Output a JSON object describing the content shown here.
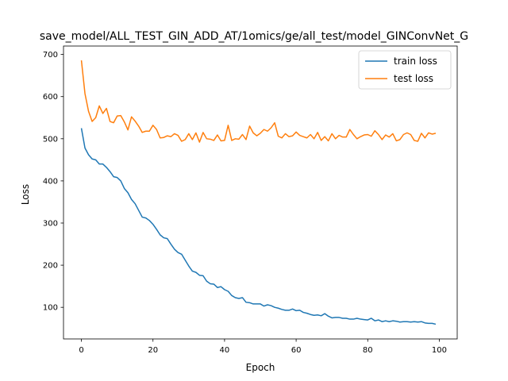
{
  "chart_data": {
    "type": "line",
    "title": "save_model/ALL_TEST_GIN_ADD_AT/1omics/ge/all_test/model_GINConvNet_G",
    "xlabel": "Epoch",
    "ylabel": "Loss",
    "xlim": [
      -5,
      105
    ],
    "ylim": [
      25,
      720
    ],
    "xticks": [
      0,
      20,
      40,
      60,
      80,
      100
    ],
    "yticks": [
      100,
      200,
      300,
      400,
      500,
      600,
      700
    ],
    "grid": false,
    "legend_position": "upper right",
    "x": [
      0,
      1,
      2,
      3,
      4,
      5,
      6,
      7,
      8,
      9,
      10,
      11,
      12,
      13,
      14,
      15,
      16,
      17,
      18,
      19,
      20,
      21,
      22,
      23,
      24,
      25,
      26,
      27,
      28,
      29,
      30,
      31,
      32,
      33,
      34,
      35,
      36,
      37,
      38,
      39,
      40,
      41,
      42,
      43,
      44,
      45,
      46,
      47,
      48,
      49,
      50,
      51,
      52,
      53,
      54,
      55,
      56,
      57,
      58,
      59,
      60,
      61,
      62,
      63,
      64,
      65,
      66,
      67,
      68,
      69,
      70,
      71,
      72,
      73,
      74,
      75,
      76,
      77,
      78,
      79,
      80,
      81,
      82,
      83,
      84,
      85,
      86,
      87,
      88,
      89,
      90,
      91,
      92,
      93,
      94,
      95,
      96,
      97,
      98,
      99
    ],
    "series": [
      {
        "name": "train loss",
        "color": "#1f77b4",
        "values": [
          525,
          478,
          462,
          452,
          450,
          440,
          440,
          432,
          422,
          410,
          408,
          400,
          382,
          372,
          356,
          346,
          330,
          314,
          312,
          306,
          297,
          285,
          272,
          265,
          263,
          250,
          238,
          230,
          226,
          212,
          198,
          186,
          183,
          176,
          175,
          162,
          156,
          155,
          147,
          149,
          142,
          138,
          128,
          123,
          121,
          123,
          112,
          111,
          108,
          108,
          108,
          103,
          106,
          104,
          100,
          98,
          95,
          93,
          93,
          96,
          92,
          93,
          88,
          86,
          83,
          81,
          82,
          80,
          85,
          79,
          75,
          76,
          76,
          74,
          74,
          72,
          72,
          74,
          72,
          71,
          70,
          74,
          68,
          70,
          66,
          68,
          66,
          68,
          67,
          65,
          66,
          66,
          65,
          66,
          65,
          66,
          63,
          62,
          62,
          60
        ]
      },
      {
        "name": "test loss",
        "color": "#ff7f0e",
        "values": [
          686,
          607,
          565,
          541,
          550,
          578,
          560,
          572,
          541,
          538,
          554,
          555,
          540,
          521,
          552,
          542,
          530,
          515,
          518,
          518,
          532,
          522,
          502,
          503,
          507,
          505,
          512,
          508,
          494,
          498,
          512,
          498,
          514,
          492,
          515,
          500,
          499,
          496,
          509,
          495,
          496,
          532,
          496,
          500,
          499,
          510,
          498,
          530,
          514,
          507,
          513,
          522,
          518,
          526,
          538,
          506,
          502,
          512,
          505,
          507,
          516,
          508,
          505,
          502,
          510,
          500,
          515,
          496,
          505,
          495,
          512,
          500,
          508,
          504,
          504,
          522,
          510,
          500,
          505,
          509,
          510,
          506,
          519,
          510,
          498,
          509,
          504,
          512,
          495,
          498,
          510,
          514,
          510,
          496,
          494,
          513,
          502,
          514,
          511,
          513
        ]
      }
    ]
  }
}
